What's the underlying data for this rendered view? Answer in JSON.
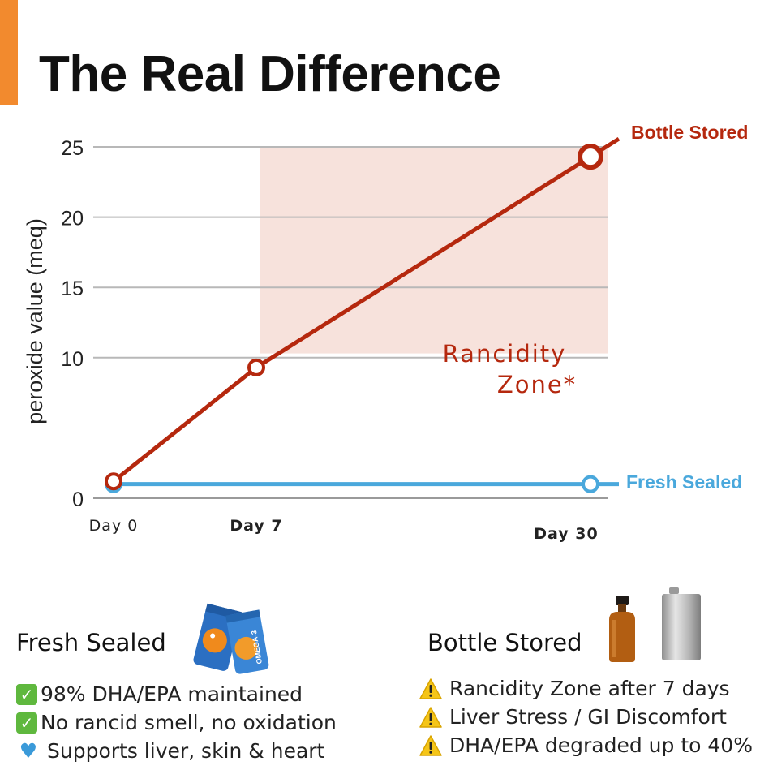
{
  "title": "The Real Difference",
  "colors": {
    "accent": "#f28a2e",
    "bottle": "#b5280e",
    "fresh": "#4aa8dc",
    "zone": "#f7e2dc"
  },
  "chart_data": {
    "type": "line",
    "ylabel": "peroxide value (meq)",
    "ylim": [
      0,
      25
    ],
    "yticks": [
      "0",
      "10",
      "15",
      "20",
      "25"
    ],
    "x_labels": [
      {
        "label": "Day 0",
        "day": 0,
        "bold": false
      },
      {
        "label": "Day 7",
        "day": 7,
        "bold": true
      },
      {
        "label": "Day 30",
        "day": 30,
        "bold": true
      }
    ],
    "series": [
      {
        "name": "Bottle Stored",
        "x": [
          0,
          7,
          30
        ],
        "values": [
          1.2,
          9.3,
          24.3
        ]
      },
      {
        "name": "Fresh Sealed",
        "x": [
          0,
          30
        ],
        "values": [
          1.0,
          1.0
        ]
      }
    ],
    "zone": {
      "label_line1": "Rancidity",
      "label_line2": "Zone*",
      "from_day": 7,
      "to_day": 30,
      "from_value": 10.3,
      "to_value": 25
    }
  },
  "fresh_panel": {
    "title": "Fresh Sealed",
    "product_icon": "omega3-pouch-icon",
    "pouch_label": "OMEGA-3",
    "items": [
      {
        "icon": "check-icon",
        "text": "98% DHA/EPA maintained"
      },
      {
        "icon": "check-icon",
        "text": "No rancid smell, no oxidation"
      },
      {
        "icon": "heart-icon",
        "text": "Supports liver, skin & heart"
      }
    ]
  },
  "bottle_panel": {
    "title": "Bottle Stored",
    "product_icon": "bottle-icon",
    "items": [
      {
        "icon": "warning-icon",
        "text": "Rancidity Zone after 7 days"
      },
      {
        "icon": "warning-icon",
        "text": "Liver Stress / GI Discomfort"
      },
      {
        "icon": "warning-icon",
        "text": "DHA/EPA degraded up to 40%"
      }
    ]
  }
}
